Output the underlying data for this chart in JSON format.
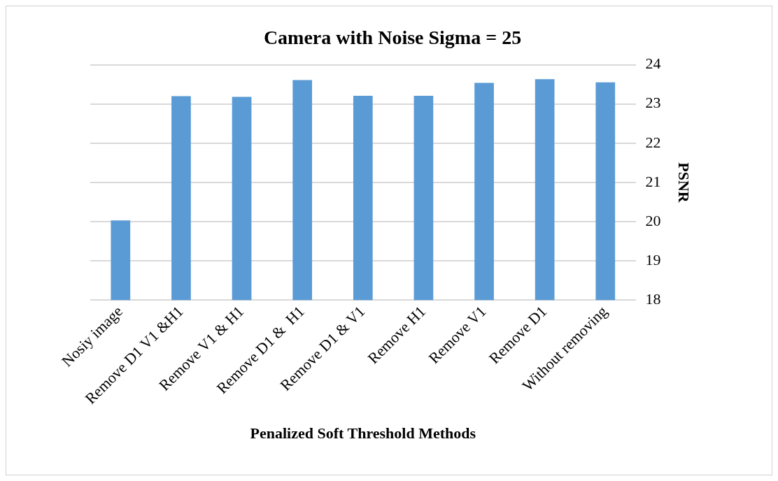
{
  "chart_data": {
    "type": "bar",
    "title": "Camera with Noise Sigma = 25",
    "xlabel": "Penalized Soft Threshold Methods",
    "ylabel": "PSNR",
    "categories": [
      "Nosiy image",
      "Remove D1 V1 &H1",
      "Remove V1 & H1",
      "Remove D1 &  H1",
      "Remove D1 & V1",
      "Remove H1",
      "Remove V1",
      "Remove D1",
      "Without removing"
    ],
    "values": [
      20.03,
      23.2,
      23.18,
      23.61,
      23.21,
      23.21,
      23.54,
      23.63,
      23.55
    ],
    "color": "#5b9bd5",
    "ylim": [
      18,
      24
    ],
    "yticks": [
      18,
      19,
      20,
      21,
      22,
      23,
      24
    ],
    "grid": "y",
    "legend": false
  }
}
